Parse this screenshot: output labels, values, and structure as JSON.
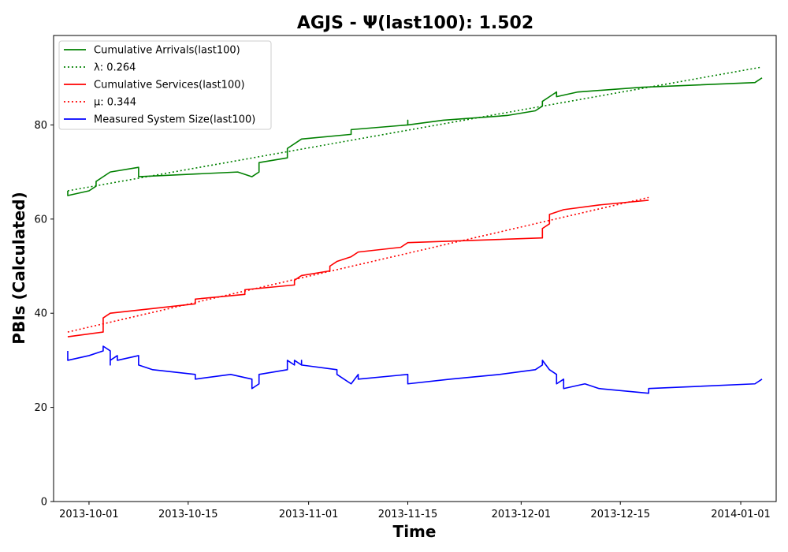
{
  "chart_data": {
    "type": "line",
    "title": "AGJS -  Ψ(last100): 1.502",
    "xlabel": "Time",
    "ylabel": "PBIs (Calculated)",
    "x_axis_type": "date",
    "xlim": [
      "2013-09-26",
      "2014-01-06"
    ],
    "ylim": [
      0,
      99
    ],
    "x_ticks": [
      "2013-10-01",
      "2013-10-15",
      "2013-11-01",
      "2013-11-15",
      "2013-12-01",
      "2013-12-15",
      "2014-01-01"
    ],
    "y_ticks": [
      0,
      20,
      40,
      60,
      80
    ],
    "grid": false,
    "legend_position": "upper left",
    "series": [
      {
        "name": "Cumulative Arrivals(last100)",
        "color": "#008000",
        "style": "solid",
        "points": [
          [
            "2013-09-28",
            66
          ],
          [
            "2013-09-28",
            65
          ],
          [
            "2013-10-01",
            66
          ],
          [
            "2013-10-02",
            67
          ],
          [
            "2013-10-02",
            68
          ],
          [
            "2013-10-04",
            70
          ],
          [
            "2013-10-08",
            71
          ],
          [
            "2013-10-08",
            70
          ],
          [
            "2013-10-08",
            69
          ],
          [
            "2013-10-22",
            70
          ],
          [
            "2013-10-24",
            69
          ],
          [
            "2013-10-25",
            70
          ],
          [
            "2013-10-25",
            72
          ],
          [
            "2013-10-29",
            73
          ],
          [
            "2013-10-29",
            75
          ],
          [
            "2013-10-31",
            77
          ],
          [
            "2013-11-07",
            78
          ],
          [
            "2013-11-07",
            79
          ],
          [
            "2013-11-15",
            80
          ],
          [
            "2013-11-15",
            81
          ],
          [
            "2013-11-15",
            80
          ],
          [
            "2013-11-20",
            81
          ],
          [
            "2013-11-29",
            82
          ],
          [
            "2013-12-03",
            83
          ],
          [
            "2013-12-04",
            84
          ],
          [
            "2013-12-04",
            85
          ],
          [
            "2013-12-05",
            86
          ],
          [
            "2013-12-06",
            87
          ],
          [
            "2013-12-06",
            86
          ],
          [
            "2013-12-09",
            87
          ],
          [
            "2013-12-18",
            88
          ],
          [
            "2014-01-03",
            89
          ],
          [
            "2014-01-04",
            90
          ]
        ]
      },
      {
        "name": "λ: 0.264",
        "color": "#008000",
        "style": "dotted",
        "points": [
          [
            "2013-09-28",
            66.0
          ],
          [
            "2014-01-04",
            92.3
          ]
        ]
      },
      {
        "name": "Cumulative Services(last100)",
        "color": "#ff0000",
        "style": "solid",
        "points": [
          [
            "2013-09-28",
            35
          ],
          [
            "2013-10-03",
            36
          ],
          [
            "2013-10-03",
            39
          ],
          [
            "2013-10-04",
            40
          ],
          [
            "2013-10-16",
            42
          ],
          [
            "2013-10-16",
            43
          ],
          [
            "2013-10-23",
            44
          ],
          [
            "2013-10-23",
            45
          ],
          [
            "2013-10-30",
            46
          ],
          [
            "2013-10-30",
            47
          ],
          [
            "2013-10-31",
            48
          ],
          [
            "2013-11-04",
            49
          ],
          [
            "2013-11-04",
            50
          ],
          [
            "2013-11-05",
            51
          ],
          [
            "2013-11-07",
            52
          ],
          [
            "2013-11-08",
            53
          ],
          [
            "2013-11-14",
            54
          ],
          [
            "2013-11-15",
            55
          ],
          [
            "2013-12-04",
            56
          ],
          [
            "2013-12-04",
            58
          ],
          [
            "2013-12-05",
            59
          ],
          [
            "2013-12-05",
            61
          ],
          [
            "2013-12-07",
            62
          ],
          [
            "2013-12-12",
            63
          ],
          [
            "2013-12-19",
            64
          ]
        ]
      },
      {
        "name": "μ: 0.344",
        "color": "#ff0000",
        "style": "dotted",
        "points": [
          [
            "2013-09-28",
            36.0
          ],
          [
            "2013-12-19",
            64.6
          ]
        ]
      },
      {
        "name": "Measured System Size(last100)",
        "color": "#0000ff",
        "style": "solid",
        "points": [
          [
            "2013-09-28",
            32
          ],
          [
            "2013-09-28",
            30
          ],
          [
            "2013-10-01",
            31
          ],
          [
            "2013-10-03",
            32
          ],
          [
            "2013-10-03",
            33
          ],
          [
            "2013-10-04",
            32
          ],
          [
            "2013-10-04",
            29
          ],
          [
            "2013-10-04",
            30
          ],
          [
            "2013-10-05",
            31
          ],
          [
            "2013-10-05",
            30
          ],
          [
            "2013-10-08",
            31
          ],
          [
            "2013-10-08",
            29
          ],
          [
            "2013-10-10",
            28
          ],
          [
            "2013-10-16",
            27
          ],
          [
            "2013-10-16",
            26
          ],
          [
            "2013-10-21",
            27
          ],
          [
            "2013-10-24",
            26
          ],
          [
            "2013-10-24",
            24
          ],
          [
            "2013-10-25",
            25
          ],
          [
            "2013-10-25",
            27
          ],
          [
            "2013-10-29",
            28
          ],
          [
            "2013-10-29",
            30
          ],
          [
            "2013-10-30",
            29
          ],
          [
            "2013-10-30",
            30
          ],
          [
            "2013-10-31",
            29
          ],
          [
            "2013-10-31",
            30
          ],
          [
            "2013-10-31",
            29
          ],
          [
            "2013-11-05",
            28
          ],
          [
            "2013-11-05",
            27
          ],
          [
            "2013-11-06",
            26
          ],
          [
            "2013-11-07",
            25
          ],
          [
            "2013-11-08",
            27
          ],
          [
            "2013-11-08",
            26
          ],
          [
            "2013-11-15",
            27
          ],
          [
            "2013-11-15",
            26
          ],
          [
            "2013-11-15",
            25
          ],
          [
            "2013-11-21",
            26
          ],
          [
            "2013-11-28",
            27
          ],
          [
            "2013-12-03",
            28
          ],
          [
            "2013-12-04",
            29
          ],
          [
            "2013-12-04",
            30
          ],
          [
            "2013-12-05",
            28
          ],
          [
            "2013-12-06",
            27
          ],
          [
            "2013-12-06",
            25
          ],
          [
            "2013-12-07",
            26
          ],
          [
            "2013-12-07",
            24
          ],
          [
            "2013-12-10",
            25
          ],
          [
            "2013-12-12",
            24
          ],
          [
            "2013-12-19",
            23
          ],
          [
            "2013-12-19",
            24
          ],
          [
            "2014-01-03",
            25
          ],
          [
            "2014-01-04",
            26
          ]
        ]
      }
    ]
  }
}
